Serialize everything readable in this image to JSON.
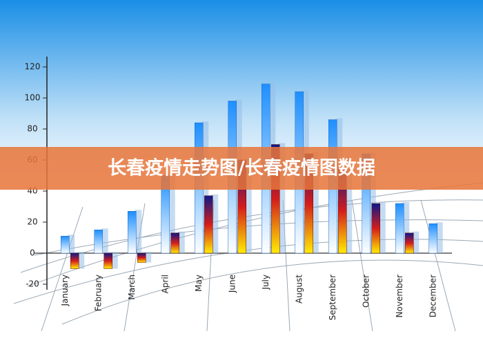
{
  "chart_data": {
    "type": "bar",
    "title": "长春疫情走势图/长春疫情图数据",
    "categories": [
      "January",
      "February",
      "March",
      "April",
      "May",
      "June",
      "July",
      "August",
      "September",
      "October",
      "November",
      "December"
    ],
    "series": [
      {
        "color": "#1e8fff",
        "values": [
          11,
          15,
          27,
          50,
          84,
          98,
          109,
          104,
          86,
          64,
          32,
          19
        ]
      },
      {
        "color": "#d41c1c",
        "values": [
          -10,
          -10,
          -6,
          13,
          37,
          60,
          70,
          64,
          55,
          32,
          13,
          null
        ]
      }
    ],
    "ylim": [
      -20,
      120
    ],
    "yticks": [
      -20,
      0,
      20,
      40,
      60,
      80,
      100,
      120
    ],
    "grid": false
  }
}
